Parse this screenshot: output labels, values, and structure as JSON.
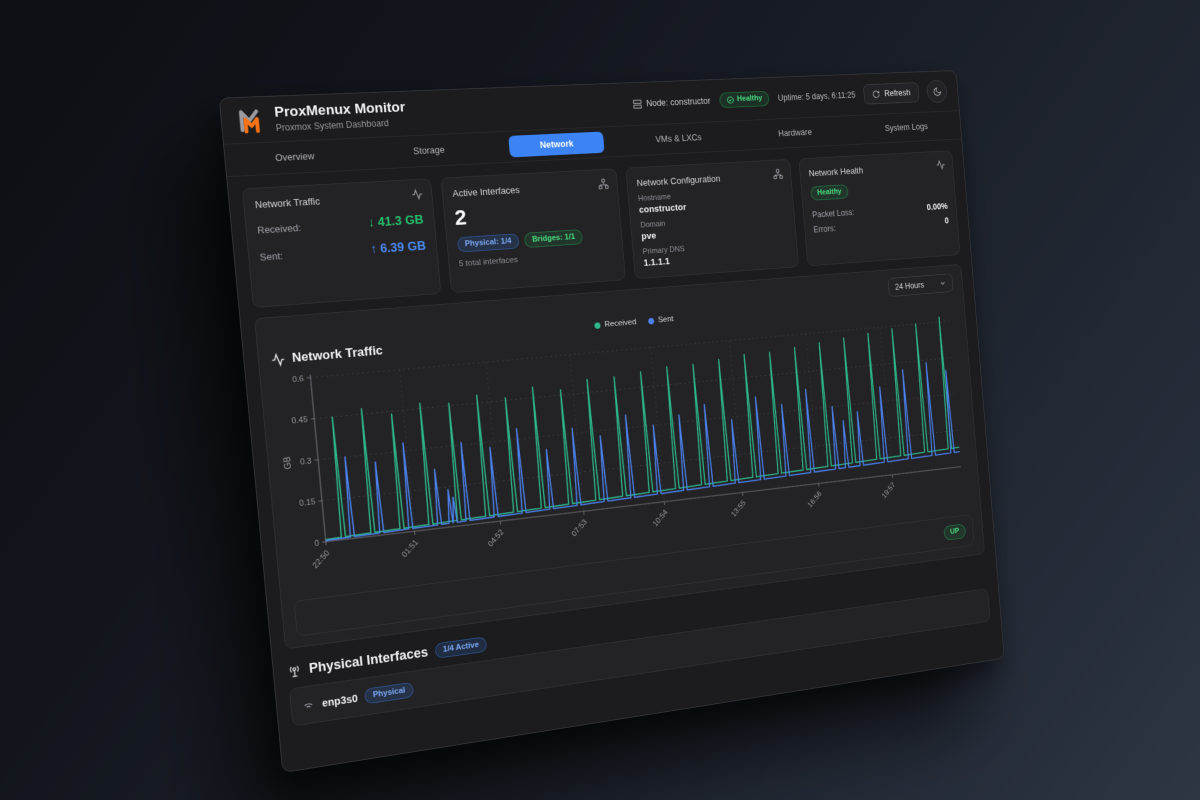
{
  "header": {
    "app_title": "ProxMenux Monitor",
    "app_subtitle": "Proxmox System Dashboard",
    "node_label": "Node: constructor",
    "health_badge": "Healthy",
    "uptime": "Uptime: 5 days, 6:11:25",
    "refresh_label": "Refresh"
  },
  "tabs": [
    {
      "label": "Overview"
    },
    {
      "label": "Storage"
    },
    {
      "label": "Network"
    },
    {
      "label": "VMs & LXCs"
    },
    {
      "label": "Hardware"
    },
    {
      "label": "System Logs"
    }
  ],
  "active_tab": "Network",
  "traffic_card": {
    "title": "Network Traffic",
    "received_label": "Received:",
    "received_value": "↓ 41.3 GB",
    "sent_label": "Sent:",
    "sent_value": "↑ 6.39 GB"
  },
  "interfaces_card": {
    "title": "Active Interfaces",
    "count": "2",
    "physical_badge": "Physical: 1/4",
    "bridges_badge": "Bridges: 1/1",
    "total": "5 total interfaces"
  },
  "config_card": {
    "title": "Network Configuration",
    "hostname_label": "Hostname",
    "hostname": "constructor",
    "domain_label": "Domain",
    "domain": "pve",
    "dns_label": "Primary DNS",
    "dns": "1.1.1.1"
  },
  "health_card": {
    "title": "Network Health",
    "status": "Healthy",
    "packet_loss_label": "Packet Loss:",
    "packet_loss": "0.00%",
    "errors_label": "Errors:",
    "errors": "0"
  },
  "time_range": {
    "selected": "24 Hours"
  },
  "bridge_row": {
    "status": "UP"
  },
  "physical_section": {
    "title": "Physical Interfaces",
    "active_badge": "1/4 Active",
    "rows": [
      {
        "name": "enp3s0",
        "badge": "Physical"
      }
    ]
  },
  "colors": {
    "accent": "#3c83f6",
    "received": "#2eb88a",
    "sent": "#4c83f0",
    "healthy": "#4ade80"
  },
  "chart_data": {
    "type": "line",
    "title": "Network Traffic",
    "ylabel": "GB",
    "ylim": [
      0,
      0.6
    ],
    "y_ticks": [
      0,
      0.15,
      0.3,
      0.45,
      0.6
    ],
    "y_tick_labels": [
      "0",
      "0.15",
      "0.3",
      "0.45",
      "0.6"
    ],
    "x_tick_labels": [
      "22:50",
      "01:51",
      "04:52",
      "07:53",
      "10:54",
      "13:55",
      "16:56",
      "19:57"
    ],
    "x_tick_hours": [
      0,
      3.02,
      6.03,
      9.05,
      12.07,
      15.08,
      18.1,
      21.12
    ],
    "window_hours": 24,
    "grid": "dashed",
    "legend_position": "top-center",
    "legend": [
      "Received",
      "Sent"
    ],
    "series": [
      {
        "name": "Received",
        "color": "#2eb88a",
        "baseline_start": 0.008,
        "baseline_end": 0.08,
        "spikes": [
          [
            0.6,
            0.45
          ],
          [
            1.6,
            0.47
          ],
          [
            2.6,
            0.44
          ],
          [
            3.6,
            0.47
          ],
          [
            4.6,
            0.46
          ],
          [
            5.6,
            0.48
          ],
          [
            6.6,
            0.46
          ],
          [
            7.6,
            0.49
          ],
          [
            8.6,
            0.47
          ],
          [
            9.6,
            0.5
          ],
          [
            10.6,
            0.5
          ],
          [
            11.6,
            0.51
          ],
          [
            12.6,
            0.52
          ],
          [
            13.6,
            0.52
          ],
          [
            14.6,
            0.53
          ],
          [
            15.6,
            0.54
          ],
          [
            16.6,
            0.54
          ],
          [
            17.6,
            0.55
          ],
          [
            18.6,
            0.56
          ],
          [
            19.6,
            0.57
          ],
          [
            20.6,
            0.58
          ],
          [
            21.6,
            0.59
          ],
          [
            22.6,
            0.6
          ],
          [
            23.6,
            0.62
          ]
        ]
      },
      {
        "name": "Sent",
        "color": "#4c83f0",
        "baseline_start": 0.004,
        "baseline_end": 0.062,
        "spikes": [
          [
            0.9,
            0.3
          ],
          [
            1.9,
            0.27
          ],
          [
            2.9,
            0.33
          ],
          [
            3.9,
            0.22
          ],
          [
            4.3,
            0.14
          ],
          [
            4.45,
            0.11
          ],
          [
            4.9,
            0.31
          ],
          [
            5.9,
            0.28
          ],
          [
            6.9,
            0.34
          ],
          [
            7.9,
            0.25
          ],
          [
            8.9,
            0.32
          ],
          [
            9.9,
            0.28
          ],
          [
            10.9,
            0.35
          ],
          [
            11.9,
            0.3
          ],
          [
            12.9,
            0.33
          ],
          [
            13.9,
            0.36
          ],
          [
            14.9,
            0.29
          ],
          [
            15.9,
            0.37
          ],
          [
            16.9,
            0.33
          ],
          [
            17.9,
            0.38
          ],
          [
            18.9,
            0.3
          ],
          [
            19.3,
            0.24
          ],
          [
            19.9,
            0.27
          ],
          [
            20.9,
            0.36
          ],
          [
            21.9,
            0.42
          ],
          [
            22.9,
            0.44
          ],
          [
            23.7,
            0.4
          ]
        ]
      }
    ]
  }
}
